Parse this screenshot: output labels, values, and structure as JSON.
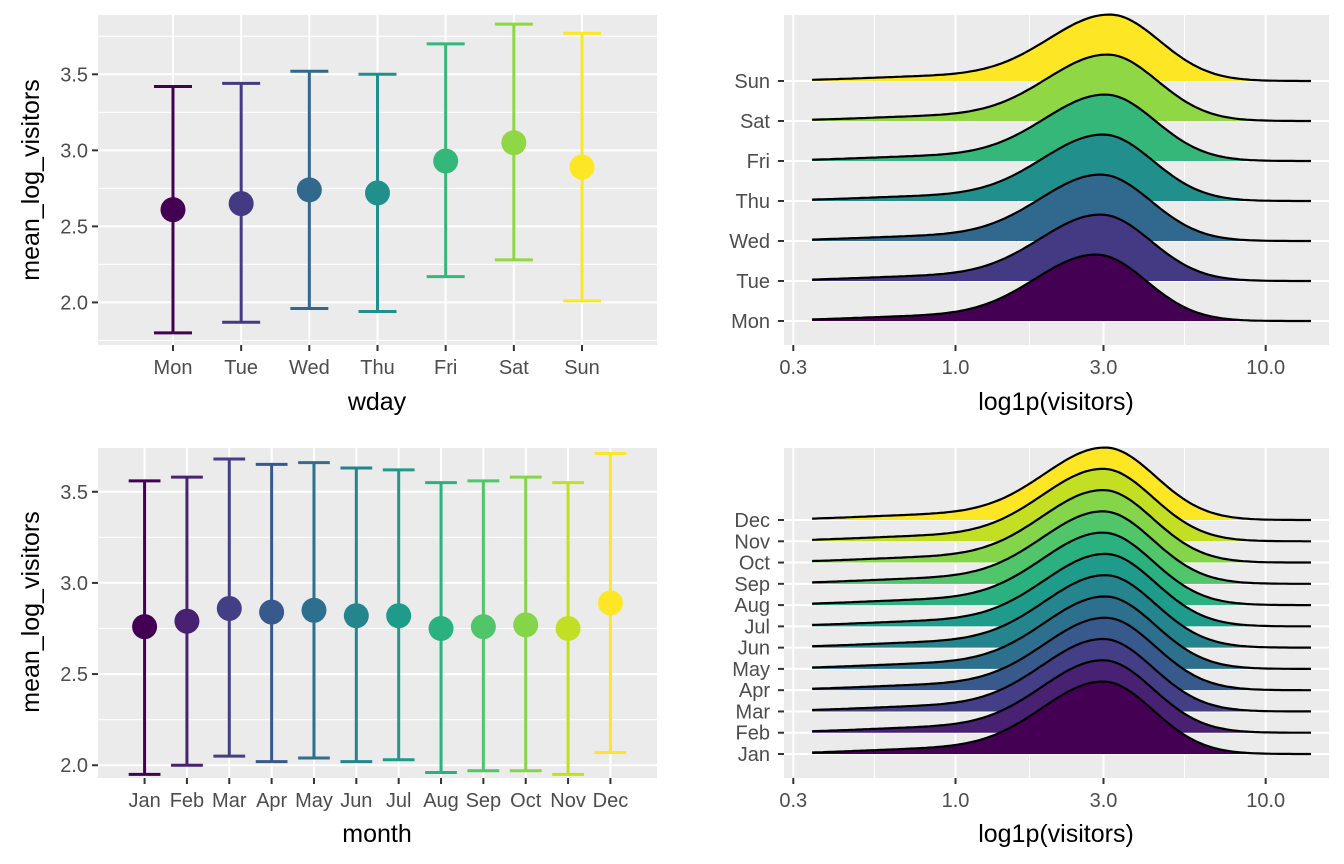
{
  "chart_data": [
    {
      "type": "errorbar",
      "xlabel": "wday",
      "ylabel": "mean_log_visitors",
      "ylim": [
        1.72,
        3.89
      ],
      "yticks": [
        2.0,
        2.5,
        3.0,
        3.5
      ],
      "ytick_labels": [
        "2.0",
        "2.5",
        "3.0",
        "3.5"
      ],
      "categories": [
        "Mon",
        "Tue",
        "Wed",
        "Thu",
        "Fri",
        "Sat",
        "Sun"
      ],
      "mean": [
        2.61,
        2.65,
        2.74,
        2.72,
        2.93,
        3.05,
        2.89
      ],
      "lower": [
        1.8,
        1.87,
        1.96,
        1.94,
        2.17,
        2.28,
        2.01
      ],
      "upper": [
        3.42,
        3.44,
        3.52,
        3.5,
        3.7,
        3.83,
        3.77
      ],
      "colors": [
        "#440154",
        "#443A83",
        "#31688E",
        "#21908C",
        "#35B779",
        "#8FD744",
        "#FDE725"
      ],
      "grid": true
    },
    {
      "type": "ridgeline",
      "xlabel": "log1p(visitors)",
      "x_scale": "log10",
      "xlim": [
        0.28,
        16
      ],
      "xticks": [
        0.3,
        1.0,
        3.0,
        10.0
      ],
      "xtick_labels": [
        "0.3",
        "1.0",
        "3.0",
        "10.0"
      ],
      "categories": [
        "Mon",
        "Tue",
        "Wed",
        "Thu",
        "Fri",
        "Sat",
        "Sun"
      ],
      "peaks": [
        2.85,
        2.95,
        2.95,
        3.0,
        3.05,
        3.1,
        3.15
      ],
      "colors": [
        "#440154",
        "#443A83",
        "#31688E",
        "#21908C",
        "#35B779",
        "#8FD744",
        "#FDE725"
      ],
      "grid": true
    },
    {
      "type": "errorbar",
      "xlabel": "month",
      "ylabel": "mean_log_visitors",
      "ylim": [
        1.93,
        3.74
      ],
      "yticks": [
        2.0,
        2.5,
        3.0,
        3.5
      ],
      "ytick_labels": [
        "2.0",
        "2.5",
        "3.0",
        "3.5"
      ],
      "categories": [
        "Jan",
        "Feb",
        "Mar",
        "Apr",
        "May",
        "Jun",
        "Jul",
        "Aug",
        "Sep",
        "Oct",
        "Nov",
        "Dec"
      ],
      "mean": [
        2.76,
        2.79,
        2.86,
        2.84,
        2.85,
        2.82,
        2.82,
        2.75,
        2.76,
        2.77,
        2.75,
        2.89
      ],
      "lower": [
        1.95,
        2.0,
        2.05,
        2.02,
        2.04,
        2.02,
        2.03,
        1.96,
        1.97,
        1.97,
        1.95,
        2.07
      ],
      "upper": [
        3.56,
        3.58,
        3.68,
        3.65,
        3.66,
        3.63,
        3.62,
        3.55,
        3.56,
        3.58,
        3.55,
        3.71
      ],
      "colors": [
        "#440154",
        "#482173",
        "#433E85",
        "#38598C",
        "#2D708E",
        "#25858E",
        "#1E9B8A",
        "#2BB07F",
        "#51C56A",
        "#85D54A",
        "#C2DF23",
        "#FDE725"
      ],
      "grid": true
    },
    {
      "type": "ridgeline",
      "xlabel": "log1p(visitors)",
      "x_scale": "log10",
      "xlim": [
        0.28,
        16
      ],
      "xticks": [
        0.3,
        1.0,
        3.0,
        10.0
      ],
      "xtick_labels": [
        "0.3",
        "1.0",
        "3.0",
        "10.0"
      ],
      "categories": [
        "Jan",
        "Feb",
        "Mar",
        "Apr",
        "May",
        "Jun",
        "Jul",
        "Aug",
        "Sep",
        "Oct",
        "Nov",
        "Dec"
      ],
      "peaks": [
        3.0,
        3.0,
        3.0,
        3.05,
        3.05,
        3.05,
        3.05,
        3.0,
        3.0,
        3.0,
        3.0,
        3.05
      ],
      "colors": [
        "#440154",
        "#482173",
        "#433E85",
        "#38598C",
        "#2D708E",
        "#25858E",
        "#1E9B8A",
        "#2BB07F",
        "#51C56A",
        "#85D54A",
        "#C2DF23",
        "#FDE725"
      ],
      "grid": true
    }
  ]
}
